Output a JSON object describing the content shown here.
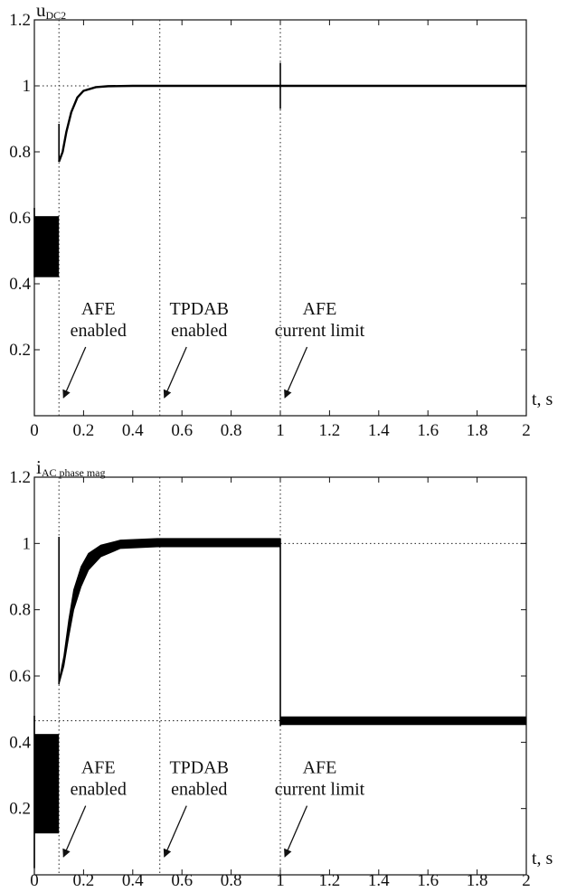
{
  "chart_data": [
    {
      "type": "line",
      "ylabel": {
        "main": "u",
        "sub": "DC2"
      },
      "xlabel": "t, s",
      "xlim": [
        0,
        2
      ],
      "ylim": [
        0,
        1.2
      ],
      "xticks": [
        "0",
        "0.2",
        "0.4",
        "0.6",
        "0.8",
        "1",
        "1.2",
        "1.4",
        "1.6",
        "1.8",
        "2"
      ],
      "yticks": [
        "0.2",
        "0.4",
        "0.6",
        "0.8",
        "1",
        "1.2"
      ],
      "grid": false,
      "reference_lines": [
        {
          "axis": "y",
          "value": 1.0,
          "x_from": 0,
          "x_to": 0.22
        },
        {
          "axis": "x",
          "value": 0.1
        },
        {
          "axis": "x",
          "value": 0.51
        },
        {
          "axis": "x",
          "value": 1.0
        }
      ],
      "series": [
        {
          "points": [
            [
              0.1,
              0.77
            ],
            [
              0.115,
              0.8
            ],
            [
              0.13,
              0.86
            ],
            [
              0.15,
              0.92
            ],
            [
              0.175,
              0.965
            ],
            [
              0.2,
              0.985
            ],
            [
              0.25,
              0.996
            ],
            [
              0.3,
              0.999
            ],
            [
              0.4,
              1.0
            ],
            [
              0.6,
              1.0
            ],
            [
              1.0,
              1.0
            ],
            [
              2.0,
              1.0
            ]
          ],
          "oscillation_band": {
            "x_from": 0.0,
            "x_to": 0.1,
            "y_low": 0.42,
            "y_high": 0.605
          },
          "spikes": [
            {
              "x": 0.0,
              "y_low": 0.42,
              "y_high": 0.63
            },
            {
              "x": 0.1,
              "y_low": 0.77,
              "y_high": 0.885
            },
            {
              "x": 1.0,
              "y_low": 0.93,
              "y_high": 1.07
            }
          ]
        }
      ],
      "annotations": [
        {
          "lines": [
            "AFE",
            "enabled"
          ],
          "x": 0.26,
          "y": 0.23,
          "arrow_to_x": 0.1
        },
        {
          "lines": [
            "TPDAB",
            "enabled"
          ],
          "x": 0.67,
          "y": 0.23,
          "arrow_to_x": 0.51
        },
        {
          "lines": [
            "AFE",
            "current limit"
          ],
          "x": 1.16,
          "y": 0.23,
          "arrow_to_x": 1.0
        }
      ]
    },
    {
      "type": "line",
      "ylabel": {
        "main": "i",
        "sub": "AC phase mag"
      },
      "xlabel": "t, s",
      "xlim": [
        0,
        2
      ],
      "ylim": [
        0,
        1.2
      ],
      "xticks": [
        "0",
        "0.2",
        "0.4",
        "0.6",
        "0.8",
        "1",
        "1.2",
        "1.4",
        "1.6",
        "1.8",
        "2"
      ],
      "yticks": [
        "0.2",
        "0.4",
        "0.6",
        "0.8",
        "1",
        "1.2"
      ],
      "grid": false,
      "reference_lines": [
        {
          "axis": "y",
          "value": 1.0,
          "x_from": 1.0,
          "x_to": 2.0
        },
        {
          "axis": "y",
          "value": 0.465,
          "x_from": 0,
          "x_to": 1.0
        },
        {
          "axis": "x",
          "value": 0.1
        },
        {
          "axis": "x",
          "value": 0.51
        },
        {
          "axis": "x",
          "value": 1.0
        }
      ],
      "series": [
        {
          "band_upper": [
            [
              0.1,
              0.585
            ],
            [
              0.12,
              0.66
            ],
            [
              0.14,
              0.77
            ],
            [
              0.16,
              0.86
            ],
            [
              0.19,
              0.93
            ],
            [
              0.22,
              0.97
            ],
            [
              0.27,
              0.995
            ],
            [
              0.35,
              1.01
            ],
            [
              0.5,
              1.015
            ],
            [
              1.0,
              1.015
            ]
          ],
          "band_lower": [
            [
              0.1,
              0.575
            ],
            [
              0.12,
              0.63
            ],
            [
              0.14,
              0.72
            ],
            [
              0.16,
              0.8
            ],
            [
              0.19,
              0.87
            ],
            [
              0.22,
              0.92
            ],
            [
              0.27,
              0.96
            ],
            [
              0.35,
              0.985
            ],
            [
              0.5,
              0.99
            ],
            [
              1.0,
              0.99
            ]
          ],
          "oscillation_band": {
            "x_from": 0.0,
            "x_to": 0.1,
            "y_low": 0.125,
            "y_high": 0.425
          },
          "steady_band": {
            "x_from": 1.0,
            "x_to": 2.0,
            "y_low": 0.452,
            "y_high": 0.478
          },
          "spikes": [
            {
              "x": 0.0,
              "y_low": 0.02,
              "y_high": 0.48
            },
            {
              "x": 0.1,
              "y_low": 0.575,
              "y_high": 1.02
            },
            {
              "x": 1.0,
              "y_low": 0.45,
              "y_high": 1.015
            }
          ]
        }
      ],
      "annotations": [
        {
          "lines": [
            "AFE",
            "enabled"
          ],
          "x": 0.26,
          "y": 0.23,
          "arrow_to_x": 0.1
        },
        {
          "lines": [
            "TPDAB",
            "enabled"
          ],
          "x": 0.67,
          "y": 0.23,
          "arrow_to_x": 0.51
        },
        {
          "lines": [
            "AFE",
            "current limit"
          ],
          "x": 1.16,
          "y": 0.23,
          "arrow_to_x": 1.0
        }
      ]
    }
  ]
}
